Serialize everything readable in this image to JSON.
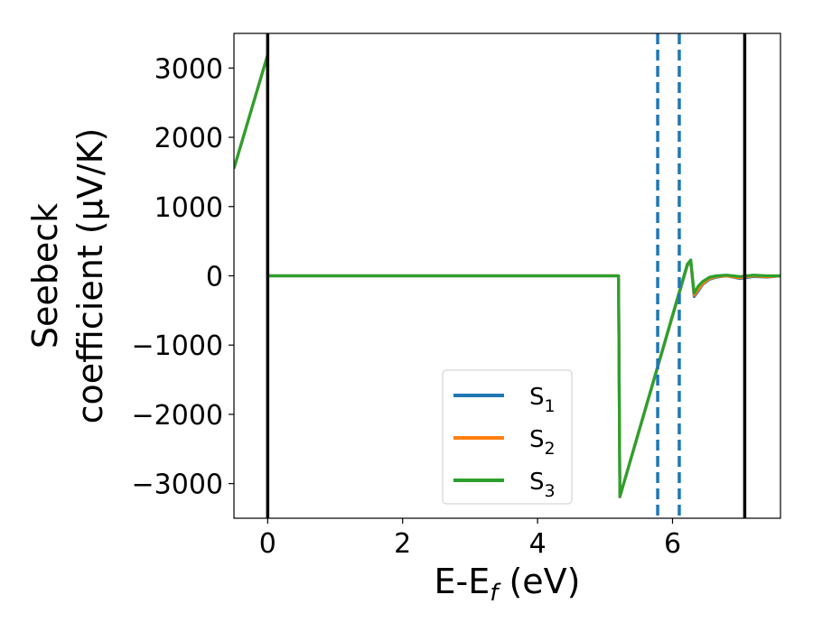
{
  "chart_data": {
    "type": "line",
    "xlabel_main": "E-E",
    "xlabel_sub": "f",
    "xlabel_unit": " (eV)",
    "ylabel_line1": "Seebeck",
    "ylabel_line2": "coefficient  (μV/K)",
    "xlim": [
      -0.5,
      7.6
    ],
    "ylim": [
      -3500,
      3500
    ],
    "xticks": [
      0,
      2,
      4,
      6
    ],
    "xtick_labels": [
      "0",
      "2",
      "4",
      "6"
    ],
    "yticks": [
      3000,
      2000,
      1000,
      0,
      -1000,
      -2000,
      -3000
    ],
    "ytick_labels": [
      "3000",
      "2000",
      "1000",
      "0",
      "−1000",
      "−2000",
      "−3000"
    ],
    "vlines_solid": [
      0.0,
      7.07
    ],
    "vlines_dashed": [
      5.78,
      6.1
    ],
    "vline_solid_color": "#000000",
    "vline_dashed_color": "#1f77b4",
    "legend_position": "lower-center",
    "series": [
      {
        "name": "S",
        "sub": "1",
        "color": "#1f77b4",
        "points": [
          [
            -0.5,
            1550
          ],
          [
            0.0,
            3190
          ],
          [
            0.0,
            0
          ],
          [
            5.2,
            0
          ],
          [
            5.22,
            -3190
          ],
          [
            6.22,
            150
          ],
          [
            6.27,
            200
          ],
          [
            6.32,
            -300
          ],
          [
            6.38,
            -220
          ],
          [
            6.45,
            -120
          ],
          [
            6.55,
            -50
          ],
          [
            6.65,
            -20
          ],
          [
            6.8,
            0
          ],
          [
            7.0,
            -40
          ],
          [
            7.2,
            -10
          ],
          [
            7.4,
            -20
          ],
          [
            7.6,
            0
          ]
        ]
      },
      {
        "name": "S",
        "sub": "2",
        "color": "#ff7f0e",
        "points": [
          [
            -0.5,
            1550
          ],
          [
            0.0,
            3190
          ],
          [
            0.0,
            0
          ],
          [
            5.2,
            0
          ],
          [
            5.22,
            -3190
          ],
          [
            6.22,
            160
          ],
          [
            6.27,
            210
          ],
          [
            6.32,
            -280
          ],
          [
            6.38,
            -200
          ],
          [
            6.45,
            -110
          ],
          [
            6.55,
            -40
          ],
          [
            6.65,
            -10
          ],
          [
            6.8,
            0
          ],
          [
            7.0,
            -30
          ],
          [
            7.2,
            0
          ],
          [
            7.4,
            -15
          ],
          [
            7.6,
            0
          ]
        ]
      },
      {
        "name": "S",
        "sub": "3",
        "color": "#2ca02c",
        "points": [
          [
            -0.5,
            1550
          ],
          [
            0.0,
            3190
          ],
          [
            0.0,
            0
          ],
          [
            5.2,
            0
          ],
          [
            5.22,
            -3190
          ],
          [
            6.22,
            170
          ],
          [
            6.27,
            230
          ],
          [
            6.32,
            -250
          ],
          [
            6.38,
            -150
          ],
          [
            6.45,
            -80
          ],
          [
            6.55,
            -20
          ],
          [
            6.65,
            0
          ],
          [
            6.8,
            10
          ],
          [
            7.0,
            -10
          ],
          [
            7.2,
            10
          ],
          [
            7.4,
            0
          ],
          [
            7.6,
            0
          ]
        ]
      }
    ]
  }
}
